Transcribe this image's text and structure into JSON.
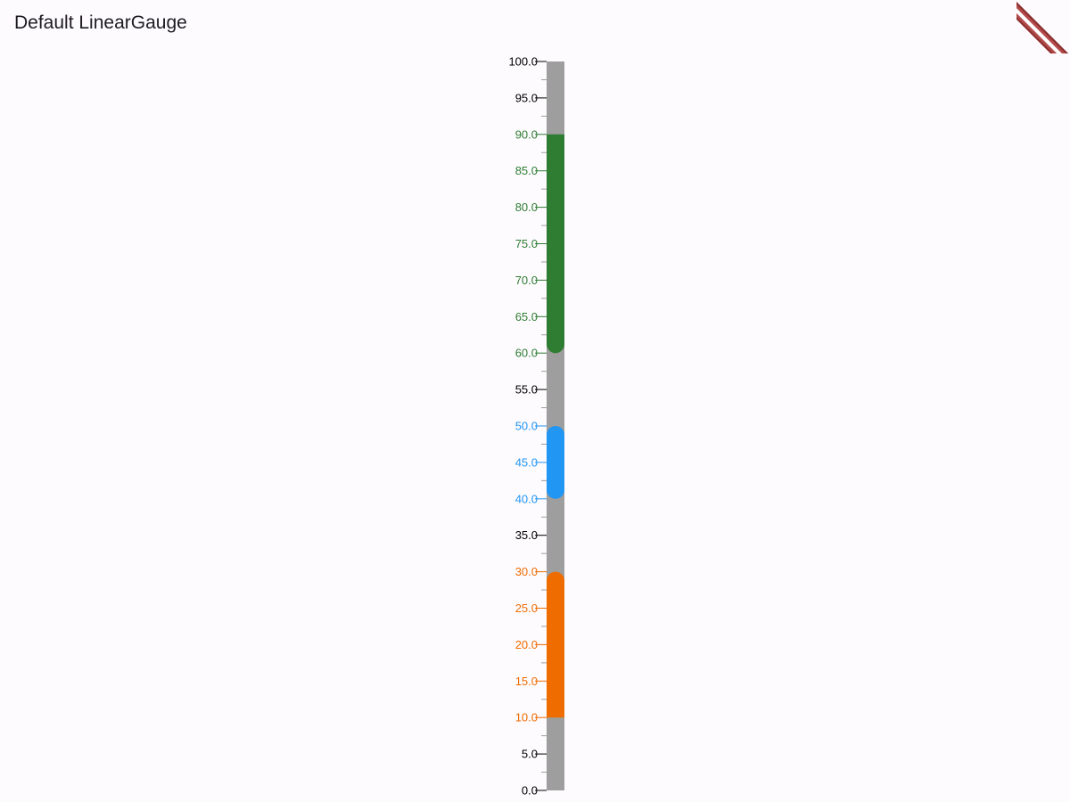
{
  "page": {
    "title": "Default LinearGauge"
  },
  "colors": {
    "background": "#fefbff",
    "track": "#9e9e9e",
    "tick_default": "#000000",
    "minor_tick": "#9e9e9e"
  },
  "chart_data": {
    "type": "linear-gauge",
    "orientation": "vertical",
    "min": 0,
    "max": 100,
    "major_interval": 5,
    "minor_per_major": 1,
    "tick_labels": [
      "0.0",
      "5.0",
      "10.0",
      "15.0",
      "20.0",
      "25.0",
      "30.0",
      "35.0",
      "40.0",
      "45.0",
      "50.0",
      "55.0",
      "60.0",
      "65.0",
      "70.0",
      "75.0",
      "80.0",
      "85.0",
      "90.0",
      "95.0",
      "100.0"
    ],
    "ranges": [
      {
        "start": 10,
        "end": 30,
        "color": "#ef6c00",
        "rounded_end": true
      },
      {
        "start": 40,
        "end": 50,
        "color": "#2196f3",
        "rounded_start": true,
        "rounded_end": true
      },
      {
        "start": 60,
        "end": 90,
        "color": "#2e7d32",
        "rounded_start": true
      }
    ]
  }
}
